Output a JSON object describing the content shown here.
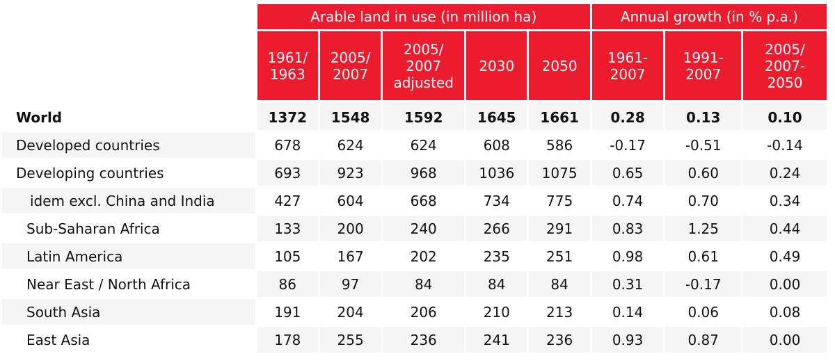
{
  "header": {
    "group_left": "Arable land in use (in million ha)",
    "group_right": "Annual growth (in % p.a.)",
    "columns": [
      "1961/\n1963",
      "2005/\n2007",
      "2005/\n2007\nadjusted",
      "2030",
      "2050",
      "1961-\n2007",
      "1991-\n2007",
      "2005/\n2007-\n2050"
    ]
  },
  "rows": [
    {
      "label": "World",
      "values": [
        "1372",
        "1548",
        "1592",
        "1645",
        "1661",
        "0.28",
        "0.13",
        "0.10"
      ]
    },
    {
      "label": "Developed countries",
      "values": [
        "678",
        "624",
        "624",
        "608",
        "586",
        "-0.17",
        "-0.51",
        "-0.14"
      ]
    },
    {
      "label": "Developing countries",
      "values": [
        "693",
        "923",
        "968",
        "1036",
        "1075",
        "0.65",
        "0.60",
        "0.24"
      ]
    },
    {
      "label": "idem excl. China and India",
      "values": [
        "427",
        "604",
        "668",
        "734",
        "775",
        "0.74",
        "0.70",
        "0.34"
      ]
    },
    {
      "label": "Sub-Saharan Africa",
      "values": [
        "133",
        "200",
        "240",
        "266",
        "291",
        "0.83",
        "1.25",
        "0.44"
      ]
    },
    {
      "label": "Latin America",
      "values": [
        "105",
        "167",
        "202",
        "235",
        "251",
        "0.98",
        "0.61",
        "0.49"
      ]
    },
    {
      "label": "Near East / North Africa",
      "values": [
        "86",
        "97",
        "84",
        "84",
        "84",
        "0.31",
        "-0.17",
        "0.00"
      ]
    },
    {
      "label": "South Asia",
      "values": [
        "191",
        "204",
        "206",
        "210",
        "213",
        "0.14",
        "0.06",
        "0.08"
      ]
    },
    {
      "label": "East Asia",
      "values": [
        "178",
        "255",
        "236",
        "241",
        "236",
        "0.93",
        "0.87",
        "0.00"
      ]
    }
  ],
  "colors": {
    "header_bg": "#ec1c2e",
    "header_text": "#ffffff",
    "row_shade": "#f5f5f5"
  }
}
